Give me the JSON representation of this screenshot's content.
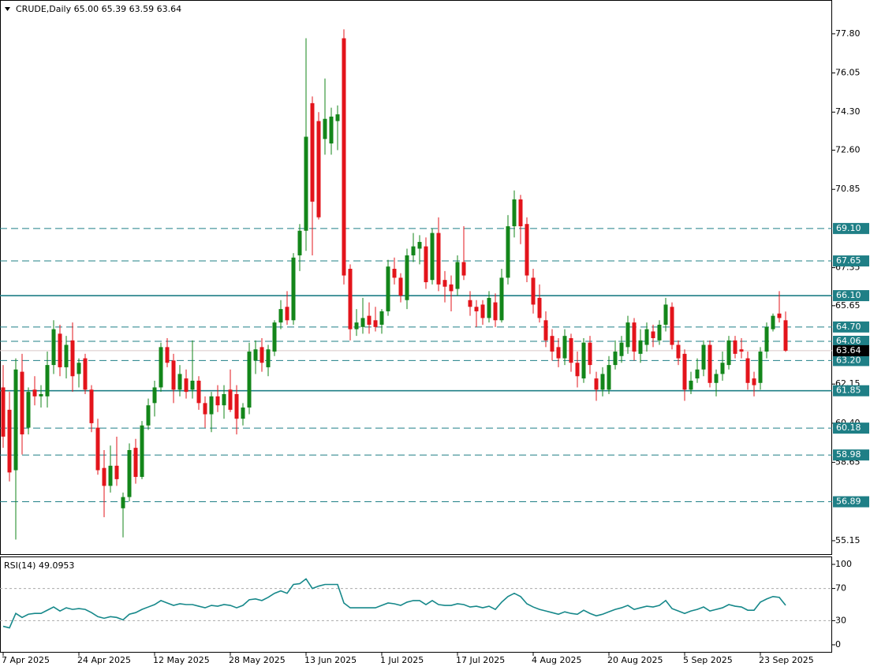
{
  "chart_data": [
    {
      "type": "candlestick",
      "title": "CRUDE,Daily  65.00 65.39 63.59 63.64",
      "categories": [
        "7 Apr 2025",
        null,
        null,
        null,
        null,
        null,
        null,
        null,
        null,
        null,
        null,
        null,
        "24 Apr 2025",
        null,
        null,
        null,
        null,
        null,
        null,
        null,
        null,
        null,
        null,
        null,
        "12 May 2025",
        null,
        null,
        null,
        null,
        null,
        null,
        null,
        null,
        null,
        null,
        null,
        "28 May 2025",
        null,
        null,
        null,
        null,
        null,
        null,
        null,
        null,
        null,
        null,
        null,
        "13 Jun 2025",
        null,
        null,
        null,
        null,
        null,
        null,
        null,
        null,
        null,
        null,
        null,
        "1 Jul 2025",
        null,
        null,
        null,
        null,
        null,
        null,
        null,
        null,
        null,
        null,
        null,
        "17 Jul 2025",
        null,
        null,
        null,
        null,
        null,
        null,
        null,
        null,
        null,
        null,
        null,
        "4 Aug 2025",
        null,
        null,
        null,
        null,
        null,
        null,
        null,
        null,
        null,
        null,
        null,
        "20 Aug 2025",
        null,
        null,
        null,
        null,
        null,
        null,
        null,
        null,
        null,
        null,
        null,
        "5 Sep 2025",
        null,
        null,
        null,
        null,
        null,
        null,
        null,
        null,
        null,
        null,
        null,
        "23 Sep 2025",
        null,
        null,
        null,
        null
      ],
      "open": [
        62.0,
        61.0,
        58.3,
        62.7,
        60.2,
        61.9,
        61.6,
        61.6,
        63.0,
        64.4,
        62.9,
        64.1,
        62.6,
        63.3,
        61.9,
        60.2,
        58.4,
        57.6,
        58.5,
        56.6,
        57.1,
        59.3,
        58.0,
        60.3,
        61.3,
        62.0,
        63.8,
        63.2,
        61.9,
        62.4,
        61.9,
        62.3,
        61.3,
        60.8,
        61.6,
        61.2,
        61.9,
        61.7,
        60.6,
        61.1,
        63.2,
        63.8,
        62.9,
        63.6,
        64.9,
        65.6,
        65.0,
        67.9,
        69.0,
        74.7,
        73.9,
        73.1,
        72.9,
        73.9,
        77.6,
        67.3,
        64.6,
        64.7,
        65.2,
        65.0,
        64.8,
        65.4,
        67.3,
        66.9,
        65.9,
        67.9,
        68.2,
        68.3,
        66.8,
        68.9,
        66.8,
        66.6,
        66.4,
        67.6,
        65.9,
        65.6,
        65.7,
        65.1,
        65.8,
        65.0,
        66.9,
        69.2,
        70.4,
        69.3,
        66.9,
        66.0,
        65.0,
        64.3,
        63.8,
        63.3,
        64.2,
        63.1,
        62.4,
        64.0,
        62.4,
        61.9,
        61.9,
        63.0,
        63.4,
        63.8,
        64.9,
        63.5,
        63.9,
        64.5,
        64.1,
        64.8,
        65.6,
        63.9,
        63.5,
        61.9,
        62.4,
        62.8,
        63.9,
        62.2,
        62.6,
        63.0,
        64.1,
        63.7,
        63.3,
        62.4,
        62.2,
        63.6,
        64.6,
        65.3,
        65.0
      ],
      "high": [
        63.0,
        61.8,
        63.3,
        63.5,
        62.0,
        62.5,
        62.1,
        63.6,
        65.0,
        64.8,
        64.3,
        64.9,
        63.3,
        63.5,
        62.1,
        60.6,
        59.2,
        59.4,
        59.8,
        57.3,
        59.5,
        59.7,
        60.5,
        61.5,
        62.3,
        64.0,
        64.2,
        63.5,
        63.0,
        62.8,
        64.1,
        62.5,
        61.6,
        61.8,
        62.1,
        62.1,
        62.8,
        62.1,
        61.3,
        64.0,
        64.1,
        64.2,
        63.9,
        65.0,
        65.9,
        66.3,
        68.0,
        69.3,
        77.6,
        75.0,
        74.3,
        75.8,
        74.5,
        74.6,
        78.0,
        67.5,
        65.5,
        66.0,
        65.8,
        65.6,
        65.5,
        67.7,
        67.8,
        67.1,
        68.2,
        68.9,
        68.8,
        68.7,
        69.1,
        69.6,
        67.2,
        67.0,
        67.9,
        69.2,
        66.3,
        65.9,
        65.9,
        66.3,
        66.2,
        67.3,
        69.7,
        70.8,
        70.6,
        69.6,
        67.3,
        66.6,
        65.4,
        64.6,
        64.2,
        64.6,
        64.4,
        63.6,
        64.2,
        64.3,
        62.7,
        62.9,
        63.4,
        64.1,
        64.3,
        65.2,
        65.1,
        64.6,
        64.9,
        64.8,
        65.0,
        66.0,
        65.8,
        64.1,
        63.7,
        62.7,
        63.3,
        64.1,
        64.1,
        62.8,
        63.6,
        64.3,
        64.3,
        64.2,
        63.6,
        62.7,
        63.8,
        64.9,
        65.3,
        66.3,
        65.39
      ],
      "low": [
        59.3,
        57.8,
        55.2,
        59.0,
        59.9,
        61.2,
        61.1,
        61.1,
        62.6,
        62.5,
        62.4,
        61.8,
        62.0,
        61.7,
        60.0,
        58.1,
        56.2,
        57.3,
        57.6,
        55.3,
        56.9,
        57.7,
        57.9,
        60.1,
        60.7,
        61.8,
        62.9,
        61.3,
        61.6,
        61.5,
        61.5,
        61.0,
        60.2,
        60.0,
        60.9,
        60.6,
        60.9,
        59.9,
        60.3,
        60.8,
        62.6,
        62.7,
        62.5,
        63.4,
        64.6,
        64.8,
        64.8,
        67.2,
        68.1,
        67.9,
        69.5,
        72.4,
        72.4,
        72.6,
        66.6,
        64.1,
        64.3,
        64.4,
        64.4,
        64.5,
        64.4,
        65.2,
        66.6,
        65.8,
        65.5,
        67.6,
        67.5,
        66.4,
        66.6,
        66.3,
        65.8,
        65.4,
        66.1,
        66.8,
        65.2,
        64.7,
        64.8,
        64.9,
        64.7,
        64.9,
        66.6,
        68.7,
        68.4,
        66.7,
        65.3,
        64.9,
        63.8,
        63.2,
        62.9,
        63.0,
        62.7,
        62.0,
        62.2,
        62.6,
        61.4,
        61.6,
        61.7,
        62.8,
        63.1,
        63.5,
        63.2,
        63.1,
        63.6,
        63.8,
        63.9,
        64.5,
        63.7,
        63.0,
        61.4,
        61.7,
        62.2,
        62.5,
        62.0,
        61.6,
        62.3,
        62.8,
        63.3,
        63.3,
        61.9,
        61.6,
        61.9,
        63.3,
        64.5,
        64.9,
        63.59
      ],
      "close": [
        59.8,
        58.2,
        62.8,
        59.9,
        61.8,
        61.6,
        61.7,
        63.0,
        64.6,
        62.9,
        63.9,
        62.5,
        63.1,
        61.9,
        60.4,
        58.3,
        57.6,
        58.5,
        57.9,
        57.1,
        59.2,
        58.0,
        60.3,
        61.2,
        62.0,
        63.8,
        63.1,
        61.9,
        62.6,
        61.8,
        62.3,
        61.3,
        60.8,
        61.6,
        61.2,
        61.7,
        61.0,
        60.6,
        61.1,
        63.6,
        63.7,
        63.1,
        63.7,
        64.9,
        65.5,
        65.0,
        67.8,
        69.0,
        73.2,
        70.3,
        69.6,
        74.0,
        74.1,
        74.2,
        67.0,
        64.6,
        64.9,
        65.1,
        64.8,
        64.7,
        65.4,
        67.4,
        66.9,
        66.1,
        67.9,
        68.3,
        68.5,
        66.7,
        68.9,
        66.6,
        66.5,
        66.3,
        67.6,
        67.0,
        65.6,
        65.4,
        65.1,
        66.0,
        65.0,
        66.9,
        69.2,
        70.4,
        69.2,
        67.0,
        65.7,
        65.1,
        64.1,
        63.6,
        63.3,
        64.3,
        63.1,
        62.5,
        64.0,
        63.0,
        61.9,
        62.6,
        63.0,
        63.6,
        64.0,
        64.9,
        63.6,
        64.1,
        64.6,
        64.2,
        64.8,
        65.7,
        63.9,
        63.3,
        61.9,
        62.3,
        62.8,
        63.9,
        62.2,
        62.6,
        63.1,
        64.1,
        63.5,
        63.6,
        62.2,
        62.1,
        63.6,
        64.7,
        65.2,
        65.1,
        63.64
      ],
      "up_color": "#13861a",
      "down_color": "#e3141b",
      "ylim": [
        54.55,
        79.31
      ],
      "yticks": [
        {
          "value": 77.8,
          "label": "77.80"
        },
        {
          "value": 76.05,
          "label": "76.05"
        },
        {
          "value": 74.3,
          "label": "74.30"
        },
        {
          "value": 72.6,
          "label": "72.60"
        },
        {
          "value": 70.85,
          "label": "70.85"
        },
        {
          "value": 67.35,
          "label": "67.35"
        },
        {
          "value": 65.65,
          "label": "65.65"
        },
        {
          "value": 62.15,
          "label": "62.15"
        },
        {
          "value": 60.4,
          "label": "60.40"
        },
        {
          "value": 58.65,
          "label": "58.65"
        },
        {
          "value": 55.15,
          "label": "55.15"
        }
      ],
      "levels": [
        {
          "value": 69.1,
          "label": "69.10",
          "style": "dashed"
        },
        {
          "value": 67.65,
          "label": "67.65",
          "style": "dashed"
        },
        {
          "value": 66.1,
          "label": "66.10",
          "style": "solid"
        },
        {
          "value": 64.7,
          "label": "64.70",
          "style": "dashed"
        },
        {
          "value": 64.06,
          "label": "64.06",
          "style": "dashed"
        },
        {
          "value": 63.2,
          "label": "63.20",
          "style": "dashed"
        },
        {
          "value": 61.85,
          "label": "61.85",
          "style": "solid"
        },
        {
          "value": 60.18,
          "label": "60.18",
          "style": "dashed"
        },
        {
          "value": 58.98,
          "label": "58.98",
          "style": "dashed"
        },
        {
          "value": 56.89,
          "label": "56.89",
          "style": "dashed"
        }
      ],
      "level_color": "#1f7f86",
      "last_price": {
        "value": 63.64,
        "label": "63.64"
      }
    },
    {
      "type": "line",
      "title": "RSI(14) 49.0953",
      "series": [
        {
          "color": "#16888a",
          "values": [
            23,
            21,
            39,
            34,
            38,
            39,
            39,
            43,
            47,
            42,
            46,
            44,
            45,
            44,
            40,
            35,
            33,
            35,
            34,
            31,
            38,
            40,
            44,
            47,
            50,
            55,
            52,
            49,
            51,
            50,
            50,
            48,
            46,
            49,
            48,
            50,
            49,
            46,
            49,
            56,
            57,
            55,
            59,
            64,
            67,
            64,
            75,
            76,
            82,
            70,
            73,
            75,
            75,
            75,
            52,
            46,
            46,
            46,
            46,
            46,
            49,
            52,
            51,
            49,
            53,
            55,
            55,
            50,
            55,
            50,
            49,
            49,
            51,
            50,
            47,
            48,
            46,
            48,
            44,
            53,
            60,
            64,
            60,
            51,
            47,
            44,
            42,
            40,
            38,
            41,
            39,
            38,
            43,
            39,
            36,
            38,
            41,
            44,
            46,
            49,
            44,
            46,
            48,
            47,
            49,
            55,
            45,
            42,
            39,
            42,
            44,
            47,
            42,
            44,
            46,
            50,
            48,
            47,
            43,
            43,
            53,
            57,
            60,
            59,
            49.0953
          ]
        }
      ],
      "ylim": [
        -9.8,
        109.8
      ],
      "yticks": [
        100,
        70,
        30,
        0
      ],
      "levels": [
        70,
        30
      ]
    }
  ]
}
